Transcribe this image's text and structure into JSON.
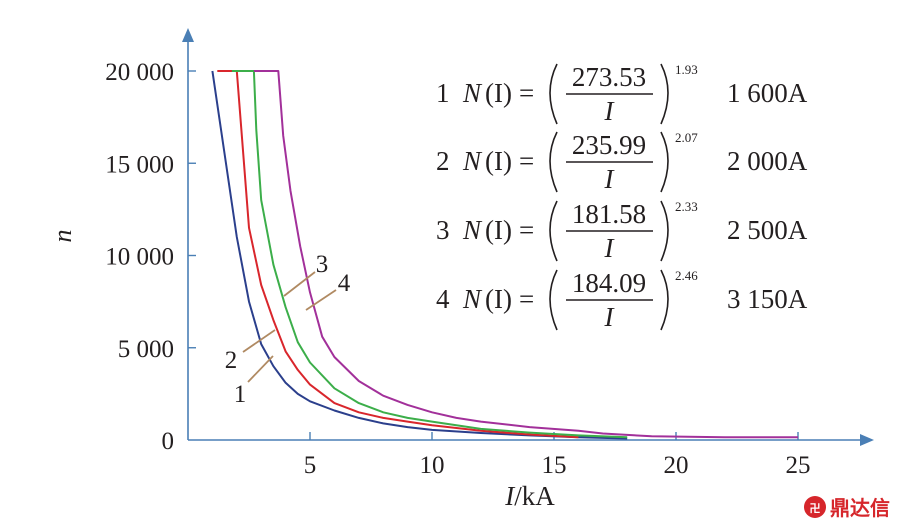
{
  "chart_data": {
    "type": "line",
    "xlabel_italic": "I",
    "xlabel_unit": "/kA",
    "ylabel": "n",
    "xlim": [
      0,
      27.5
    ],
    "ylim": [
      0,
      21500
    ],
    "xticks": [
      "5",
      "10",
      "15",
      "20",
      "25"
    ],
    "xtick_values": [
      5,
      10,
      15,
      20,
      25
    ],
    "yticks": [
      "0",
      "5 000",
      "10 000",
      "15 000",
      "20 000"
    ],
    "ytick_values": [
      0,
      5000,
      10000,
      15000,
      20000
    ],
    "series": [
      {
        "name": "1",
        "color": "#2b3f8c",
        "x": [
          1.0,
          1.5,
          2.0,
          2.5,
          3.0,
          3.5,
          4.0,
          4.5,
          5.0,
          6.0,
          7.0,
          8.0,
          9.0,
          10.0,
          12.0,
          14.0,
          16.0,
          18.0
        ],
        "y": [
          20000,
          15500,
          11000,
          7500,
          5200,
          4000,
          3100,
          2500,
          2100,
          1600,
          1200,
          900,
          700,
          550,
          380,
          250,
          150,
          80
        ]
      },
      {
        "name": "2",
        "color": "#d9262c",
        "x": [
          1.2,
          2.0,
          2.5,
          3.0,
          3.5,
          4.0,
          4.5,
          5.0,
          6.0,
          7.0,
          8.0,
          9.0,
          10.0,
          12.0,
          14.0,
          16.0
        ],
        "y": [
          20000,
          20000,
          11500,
          8400,
          6500,
          4800,
          3800,
          3000,
          2000,
          1500,
          1200,
          1000,
          800,
          500,
          300,
          150
        ]
      },
      {
        "name": "3",
        "color": "#3cae4a",
        "x": [
          1.8,
          2.7,
          2.8,
          3.0,
          3.5,
          4.0,
          4.5,
          5.0,
          6.0,
          7.0,
          8.0,
          9.0,
          10.0,
          12.0,
          14.0,
          16.0,
          18.0
        ],
        "y": [
          20000,
          20000,
          16800,
          13000,
          9500,
          7200,
          5300,
          4200,
          2800,
          2000,
          1500,
          1200,
          1000,
          600,
          400,
          250,
          150
        ]
      },
      {
        "name": "4",
        "color": "#a2309a",
        "x": [
          2.7,
          3.7,
          3.9,
          4.2,
          4.6,
          5.0,
          5.5,
          6.0,
          7.0,
          8.0,
          9.0,
          10.0,
          11.0,
          12.0,
          14.0,
          16.0,
          17.0,
          19.0,
          22.0,
          25.0
        ],
        "y": [
          20000,
          20000,
          16500,
          13500,
          10500,
          8000,
          5600,
          4500,
          3200,
          2400,
          1900,
          1500,
          1200,
          1000,
          700,
          500,
          350,
          200,
          150,
          150
        ]
      }
    ],
    "curve_labels": [
      "1",
      "2",
      "3",
      "4"
    ],
    "equations": [
      {
        "idx": "1",
        "lhs_n": "N",
        "lhs_arg": "(I)",
        "eq": "=",
        "num": "273.53",
        "den": "I",
        "exp": "1.93",
        "rated": "1 600A"
      },
      {
        "idx": "2",
        "lhs_n": "N",
        "lhs_arg": "(I)",
        "eq": "=",
        "num": "235.99",
        "den": "I",
        "exp": "2.07",
        "rated": "2 000A"
      },
      {
        "idx": "3",
        "lhs_n": "N",
        "lhs_arg": "(I)",
        "eq": "=",
        "num": "181.58",
        "den": "I",
        "exp": "2.33",
        "rated": "2 500A"
      },
      {
        "idx": "4",
        "lhs_n": "N",
        "lhs_arg": "(I)",
        "eq": "=",
        "num": "184.09",
        "den": "I",
        "exp": "2.46",
        "rated": "3 150A"
      }
    ]
  },
  "watermark": {
    "text": "鼎达信",
    "color": "#d6262b"
  }
}
